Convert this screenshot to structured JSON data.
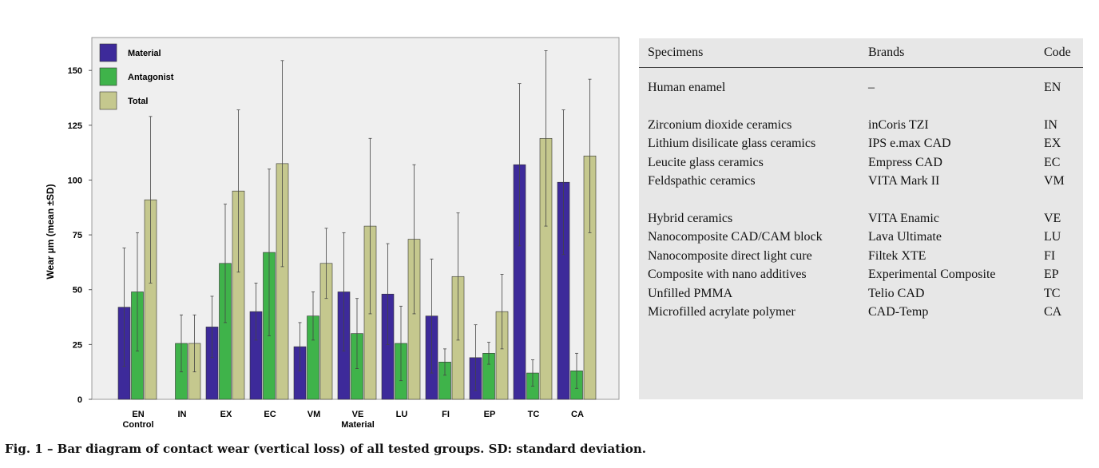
{
  "chart_data": {
    "type": "bar",
    "ylabel": "Wear µm (mean ±SD)",
    "ylim": [
      0,
      165
    ],
    "yticks": [
      0,
      25,
      50,
      75,
      100,
      125,
      150
    ],
    "grid": false,
    "legend_position": "top-left",
    "categories": [
      {
        "label": "EN",
        "sublabel": "Control"
      },
      {
        "label": "IN",
        "sublabel": ""
      },
      {
        "label": "EX",
        "sublabel": ""
      },
      {
        "label": "EC",
        "sublabel": ""
      },
      {
        "label": "VM",
        "sublabel": ""
      },
      {
        "label": "VE",
        "sublabel": "Material"
      },
      {
        "label": "LU",
        "sublabel": ""
      },
      {
        "label": "FI",
        "sublabel": ""
      },
      {
        "label": "EP",
        "sublabel": ""
      },
      {
        "label": "TC",
        "sublabel": ""
      },
      {
        "label": "CA",
        "sublabel": ""
      }
    ],
    "series": [
      {
        "name": "Material",
        "color": "#3d2a9a",
        "values": [
          42,
          0,
          33,
          40,
          24,
          49,
          48,
          38,
          19,
          107,
          99
        ],
        "sd": [
          27,
          0,
          14,
          13,
          11,
          27,
          23,
          26,
          15,
          37,
          33
        ]
      },
      {
        "name": "Antagonist",
        "color": "#3fb34a",
        "values": [
          49,
          25.5,
          62,
          67,
          38,
          30,
          25.5,
          17,
          21,
          12,
          13
        ],
        "sd": [
          27,
          13,
          27,
          38,
          11,
          16,
          17,
          6,
          5,
          6,
          8
        ]
      },
      {
        "name": "Total",
        "color": "#c5c88e",
        "values": [
          91,
          25.5,
          95,
          107.5,
          62,
          79,
          73,
          56,
          40,
          119,
          111
        ],
        "sd": [
          38,
          13,
          37,
          47,
          16,
          40,
          34,
          29,
          17,
          40,
          35
        ]
      }
    ]
  },
  "table": {
    "headers": {
      "specimens": "Specimens",
      "brands": "Brands",
      "code": "Code"
    },
    "rows": [
      {
        "specimen": "Human enamel",
        "brand": "–",
        "code": "EN"
      },
      {
        "specimen": "Zirconium dioxide ceramics",
        "brand": "inCoris TZI",
        "code": "IN"
      },
      {
        "specimen": "Lithium disilicate glass ceramics",
        "brand": "IPS e.max CAD",
        "code": "EX"
      },
      {
        "specimen": "Leucite glass ceramics",
        "brand": "Empress CAD",
        "code": "EC"
      },
      {
        "specimen": "Feldspathic ceramics",
        "brand": "VITA Mark II",
        "code": "VM"
      },
      {
        "specimen": "Hybrid ceramics",
        "brand": "VITA Enamic",
        "code": "VE"
      },
      {
        "specimen": "Nanocomposite CAD/CAM block",
        "brand": "Lava Ultimate",
        "code": "LU"
      },
      {
        "specimen": "Nanocomposite direct light cure",
        "brand": "Filtek XTE",
        "code": "FI"
      },
      {
        "specimen": "Composite with nano additives",
        "brand": "Experimental Composite",
        "code": "EP"
      },
      {
        "specimen": "Unfilled PMMA",
        "brand": "Telio CAD",
        "code": "TC"
      },
      {
        "specimen": "Microfilled acrylate polymer",
        "brand": "CAD-Temp",
        "code": "CA"
      }
    ]
  },
  "caption": "Fig. 1 – Bar diagram of contact wear (vertical loss) of all tested groups. SD: standard deviation."
}
